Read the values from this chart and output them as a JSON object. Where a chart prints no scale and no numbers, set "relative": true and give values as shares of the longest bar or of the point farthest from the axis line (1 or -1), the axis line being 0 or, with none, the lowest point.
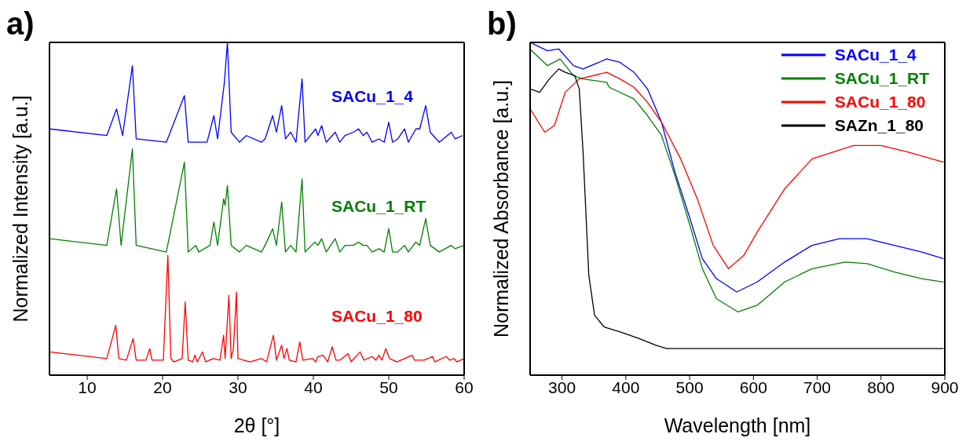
{
  "chart_data": [
    {
      "type": "line",
      "title": "a)",
      "xlabel": "2θ [°]",
      "ylabel": "Normalized Intensity [a.u.]",
      "relative": true,
      "xlim": [
        5,
        60
      ],
      "xticks": [
        10,
        20,
        30,
        40,
        50,
        60
      ],
      "legend": false,
      "marker": "none",
      "series": [
        {
          "name": "SACu_1_4",
          "color": "#0000ff",
          "x": [
            5.0,
            12.6,
            13.9,
            14.7,
            16.0,
            16.5,
            20.5,
            22.9,
            23.4,
            25.9,
            26.8,
            27.3,
            28.2,
            28.6,
            29.1,
            30.2,
            31.1,
            33.1,
            33.6,
            34.6,
            35.1,
            35.8,
            36.3,
            37.0,
            37.7,
            38.5,
            38.9,
            40.3,
            40.6,
            41.1,
            41.7,
            42.9,
            43.5,
            44.2,
            45.3,
            46.0,
            46.6,
            47.1,
            47.8,
            48.7,
            49.4,
            50.0,
            50.5,
            51.2,
            52.1,
            52.6,
            53.6,
            54.1,
            54.9,
            55.5,
            56.7,
            58.3,
            58.8,
            59.8
          ],
          "values": [
            0.74,
            0.72,
            0.8,
            0.72,
            0.93,
            0.71,
            0.7,
            0.84,
            0.7,
            0.7,
            0.78,
            0.71,
            0.88,
            1.0,
            0.73,
            0.7,
            0.72,
            0.7,
            0.71,
            0.78,
            0.73,
            0.81,
            0.71,
            0.73,
            0.7,
            0.89,
            0.7,
            0.74,
            0.72,
            0.75,
            0.7,
            0.73,
            0.7,
            0.72,
            0.73,
            0.74,
            0.72,
            0.73,
            0.7,
            0.71,
            0.7,
            0.76,
            0.7,
            0.71,
            0.74,
            0.7,
            0.74,
            0.74,
            0.81,
            0.73,
            0.7,
            0.73,
            0.71,
            0.72
          ]
        },
        {
          "name": "SACu_1_RT",
          "color": "#008000",
          "x": [
            5.0,
            12.6,
            13.9,
            14.5,
            16.0,
            16.5,
            20.5,
            22.9,
            23.4,
            24.4,
            24.8,
            26.3,
            26.8,
            27.3,
            28.1,
            28.3,
            28.6,
            29.1,
            30.2,
            31.1,
            33.1,
            33.6,
            34.6,
            35.1,
            35.8,
            36.3,
            37.0,
            37.7,
            38.5,
            38.9,
            40.2,
            40.6,
            41.1,
            41.7,
            42.9,
            43.5,
            44.2,
            45.3,
            46.0,
            46.6,
            47.1,
            47.8,
            48.7,
            49.4,
            50.0,
            50.5,
            51.2,
            52.1,
            52.6,
            53.6,
            54.1,
            54.9,
            55.5,
            56.7,
            58.3,
            58.8,
            60.0
          ],
          "values": [
            0.41,
            0.39,
            0.56,
            0.39,
            0.68,
            0.39,
            0.37,
            0.64,
            0.37,
            0.39,
            0.37,
            0.39,
            0.46,
            0.39,
            0.53,
            0.51,
            0.57,
            0.39,
            0.37,
            0.39,
            0.37,
            0.39,
            0.44,
            0.39,
            0.52,
            0.37,
            0.39,
            0.37,
            0.59,
            0.37,
            0.4,
            0.39,
            0.41,
            0.37,
            0.41,
            0.37,
            0.39,
            0.39,
            0.4,
            0.39,
            0.39,
            0.37,
            0.38,
            0.37,
            0.44,
            0.37,
            0.37,
            0.39,
            0.37,
            0.4,
            0.39,
            0.47,
            0.39,
            0.37,
            0.39,
            0.38,
            0.39
          ]
        },
        {
          "name": "SACu_1_80",
          "color": "#ff0000",
          "x": [
            5.0,
            12.6,
            13.8,
            14.2,
            15.2,
            16.1,
            16.5,
            17.8,
            18.3,
            18.6,
            20.1,
            20.7,
            21.1,
            21.5,
            22.6,
            23.0,
            23.4,
            24.0,
            24.3,
            24.6,
            25.3,
            25.7,
            26.7,
            27.6,
            28.1,
            28.3,
            28.8,
            29.1,
            29.4,
            29.8,
            30.0,
            31.6,
            33.1,
            33.8,
            34.7,
            35.1,
            35.8,
            36.1,
            36.5,
            36.8,
            37.7,
            38.2,
            38.6,
            39.9,
            40.3,
            40.6,
            41.3,
            41.9,
            42.5,
            43.0,
            43.5,
            44.6,
            45.0,
            46.2,
            46.7,
            47.8,
            48.3,
            48.7,
            49.1,
            49.6,
            50.1,
            51.1,
            53.1,
            53.4,
            54.7,
            55.8,
            56.1,
            57.6,
            58.1,
            58.7,
            59.0,
            60.0
          ],
          "values": [
            0.07,
            0.05,
            0.15,
            0.05,
            0.045,
            0.11,
            0.045,
            0.045,
            0.08,
            0.045,
            0.045,
            0.36,
            0.05,
            0.04,
            0.05,
            0.22,
            0.045,
            0.04,
            0.06,
            0.04,
            0.07,
            0.04,
            0.05,
            0.045,
            0.12,
            0.05,
            0.24,
            0.05,
            0.08,
            0.25,
            0.05,
            0.04,
            0.05,
            0.04,
            0.12,
            0.045,
            0.09,
            0.05,
            0.08,
            0.045,
            0.04,
            0.1,
            0.045,
            0.05,
            0.04,
            0.056,
            0.06,
            0.04,
            0.085,
            0.045,
            0.045,
            0.065,
            0.04,
            0.07,
            0.045,
            0.056,
            0.045,
            0.06,
            0.045,
            0.08,
            0.05,
            0.04,
            0.06,
            0.045,
            0.045,
            0.056,
            0.04,
            0.056,
            0.045,
            0.05,
            0.04,
            0.05
          ]
        }
      ]
    },
    {
      "type": "line",
      "title": "b)",
      "xlabel": "Wavelength [nm]",
      "ylabel": "Normalized Absorbance [a.u.]",
      "relative": true,
      "xlim": [
        250,
        900
      ],
      "xticks": [
        300,
        400,
        500,
        600,
        700,
        800,
        900
      ],
      "legend": "top right",
      "marker": "none",
      "series": [
        {
          "name": "SACu_1_4",
          "color": "#0000ff",
          "x": [
            250,
            277,
            295,
            318,
            333,
            370,
            391,
            413,
            434,
            456,
            477,
            499,
            520,
            542,
            574,
            606,
            649,
            692,
            735,
            778,
            821,
            864,
            898
          ],
          "values": [
            1.0,
            0.975,
            0.98,
            0.93,
            0.92,
            0.95,
            0.94,
            0.91,
            0.86,
            0.76,
            0.61,
            0.48,
            0.35,
            0.29,
            0.25,
            0.28,
            0.34,
            0.39,
            0.41,
            0.41,
            0.39,
            0.37,
            0.35
          ]
        },
        {
          "name": "SACu_1_RT",
          "color": "#008000",
          "x": [
            250,
            277,
            297,
            318,
            333,
            370,
            374,
            413,
            434,
            456,
            477,
            499,
            520,
            542,
            576,
            606,
            649,
            692,
            744,
            778,
            821,
            864,
            898
          ],
          "values": [
            0.98,
            0.93,
            0.95,
            0.9,
            0.89,
            0.88,
            0.865,
            0.83,
            0.78,
            0.72,
            0.6,
            0.46,
            0.32,
            0.23,
            0.19,
            0.21,
            0.28,
            0.32,
            0.34,
            0.335,
            0.31,
            0.29,
            0.28
          ]
        },
        {
          "name": "SACu_1_80",
          "color": "#ff0000",
          "x": [
            250,
            273,
            288,
            305,
            327,
            370,
            391,
            413,
            434,
            456,
            486,
            512,
            537,
            561,
            585,
            606,
            649,
            692,
            757,
            800,
            843,
            898
          ],
          "values": [
            0.8,
            0.73,
            0.75,
            0.85,
            0.89,
            0.91,
            0.89,
            0.865,
            0.82,
            0.76,
            0.65,
            0.53,
            0.39,
            0.32,
            0.36,
            0.43,
            0.56,
            0.65,
            0.69,
            0.69,
            0.67,
            0.64
          ]
        },
        {
          "name": "SAZn_1_80",
          "color": "#000000",
          "x": [
            250,
            265,
            280,
            295,
            305,
            320,
            327,
            333,
            342,
            351,
            366,
            391,
            421,
            447,
            464,
            628,
            757,
            864,
            898
          ],
          "values": [
            0.86,
            0.85,
            0.89,
            0.92,
            0.91,
            0.9,
            0.86,
            0.67,
            0.3,
            0.18,
            0.145,
            0.13,
            0.11,
            0.09,
            0.08,
            0.08,
            0.08,
            0.08,
            0.08
          ]
        }
      ]
    }
  ]
}
